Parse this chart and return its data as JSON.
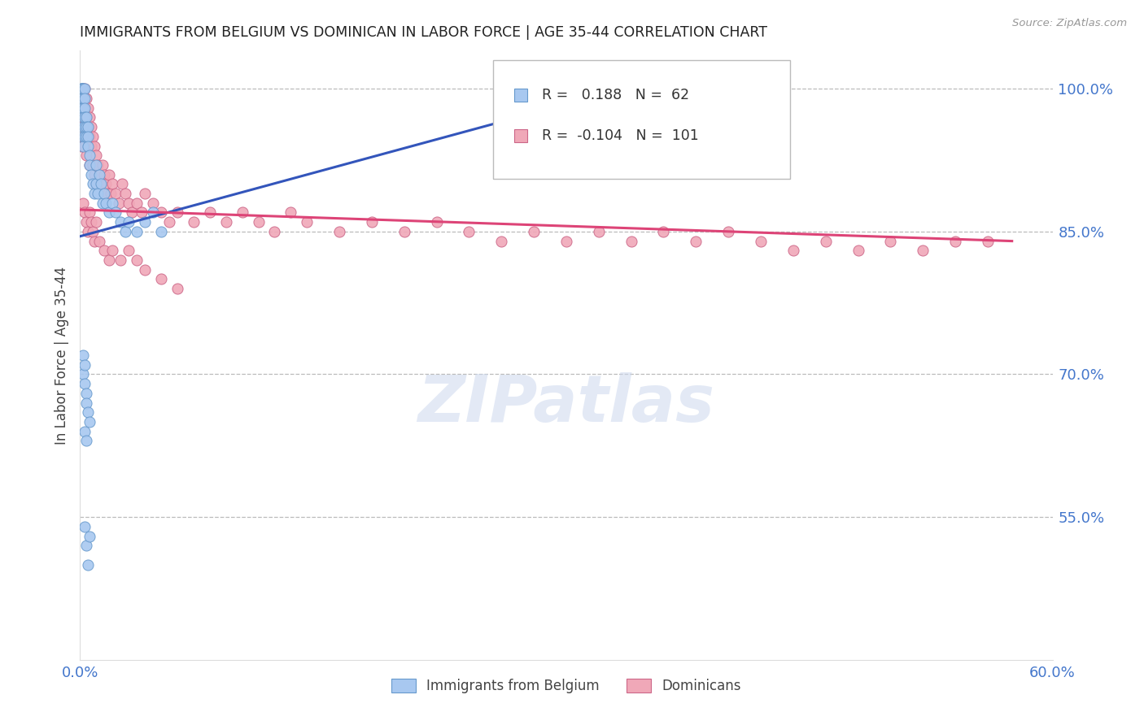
{
  "title": "IMMIGRANTS FROM BELGIUM VS DOMINICAN IN LABOR FORCE | AGE 35-44 CORRELATION CHART",
  "source": "Source: ZipAtlas.com",
  "ylabel": "In Labor Force | Age 35-44",
  "x_min": 0.0,
  "x_max": 0.6,
  "y_min": 0.4,
  "y_max": 1.04,
  "y_ticks": [
    0.55,
    0.7,
    0.85,
    1.0
  ],
  "y_tick_labels": [
    "55.0%",
    "70.0%",
    "85.0%",
    "100.0%"
  ],
  "belgium_color": "#a8c8f0",
  "dominican_color": "#f0a8b8",
  "belgium_edge_color": "#6699cc",
  "dominican_edge_color": "#cc6688",
  "trendline_belgium_color": "#3355bb",
  "trendline_dominican_color": "#dd4477",
  "legend_R_belgium": " 0.188",
  "legend_N_belgium": "62",
  "legend_R_dominican": "-0.104",
  "legend_N_dominican": "101",
  "legend_label_belgium": "Immigrants from Belgium",
  "legend_label_dominican": "Dominicans",
  "watermark": "ZIPatlas",
  "background_color": "#ffffff",
  "grid_color": "#bbbbbb",
  "axis_color": "#4477cc",
  "title_color": "#222222",
  "marker_size": 9,
  "bel_trendline_x": [
    0.0,
    0.27
  ],
  "bel_trendline_y": [
    0.845,
    0.97
  ],
  "dom_trendline_x": [
    0.0,
    0.575
  ],
  "dom_trendline_y": [
    0.873,
    0.84
  ],
  "belgium_x": [
    0.001,
    0.001,
    0.001,
    0.001,
    0.001,
    0.002,
    0.002,
    0.002,
    0.002,
    0.002,
    0.002,
    0.002,
    0.002,
    0.003,
    0.003,
    0.003,
    0.003,
    0.003,
    0.003,
    0.004,
    0.004,
    0.004,
    0.005,
    0.005,
    0.005,
    0.006,
    0.006,
    0.007,
    0.008,
    0.009,
    0.01,
    0.01,
    0.011,
    0.012,
    0.013,
    0.014,
    0.015,
    0.016,
    0.018,
    0.02,
    0.022,
    0.025,
    0.028,
    0.03,
    0.035,
    0.04,
    0.045,
    0.05,
    0.002,
    0.002,
    0.003,
    0.003,
    0.004,
    0.004,
    0.005,
    0.006,
    0.003,
    0.004,
    0.005,
    0.006,
    0.003,
    0.004
  ],
  "belgium_y": [
    1.0,
    1.0,
    0.99,
    0.98,
    1.0,
    1.0,
    1.0,
    0.99,
    0.98,
    0.97,
    0.96,
    0.95,
    0.94,
    1.0,
    0.99,
    0.98,
    0.97,
    0.96,
    0.95,
    0.97,
    0.96,
    0.95,
    0.96,
    0.95,
    0.94,
    0.93,
    0.92,
    0.91,
    0.9,
    0.89,
    0.92,
    0.9,
    0.89,
    0.91,
    0.9,
    0.88,
    0.89,
    0.88,
    0.87,
    0.88,
    0.87,
    0.86,
    0.85,
    0.86,
    0.85,
    0.86,
    0.87,
    0.85,
    0.72,
    0.7,
    0.71,
    0.69,
    0.68,
    0.67,
    0.66,
    0.65,
    0.54,
    0.52,
    0.5,
    0.53,
    0.64,
    0.63
  ],
  "dominican_x": [
    0.001,
    0.001,
    0.001,
    0.002,
    0.002,
    0.002,
    0.002,
    0.003,
    0.003,
    0.003,
    0.003,
    0.003,
    0.004,
    0.004,
    0.004,
    0.004,
    0.005,
    0.005,
    0.005,
    0.006,
    0.006,
    0.006,
    0.007,
    0.007,
    0.008,
    0.008,
    0.009,
    0.009,
    0.01,
    0.01,
    0.011,
    0.012,
    0.013,
    0.014,
    0.015,
    0.016,
    0.017,
    0.018,
    0.019,
    0.02,
    0.022,
    0.024,
    0.026,
    0.028,
    0.03,
    0.032,
    0.035,
    0.038,
    0.04,
    0.045,
    0.05,
    0.055,
    0.06,
    0.07,
    0.08,
    0.09,
    0.1,
    0.11,
    0.12,
    0.13,
    0.14,
    0.16,
    0.18,
    0.2,
    0.22,
    0.24,
    0.26,
    0.28,
    0.3,
    0.32,
    0.34,
    0.36,
    0.38,
    0.4,
    0.42,
    0.44,
    0.46,
    0.48,
    0.5,
    0.52,
    0.54,
    0.56,
    0.002,
    0.003,
    0.004,
    0.005,
    0.006,
    0.007,
    0.008,
    0.009,
    0.01,
    0.012,
    0.015,
    0.018,
    0.02,
    0.025,
    0.03,
    0.035,
    0.04,
    0.05,
    0.06
  ],
  "dominican_y": [
    0.99,
    0.97,
    0.94,
    1.0,
    0.99,
    0.97,
    0.95,
    1.0,
    0.99,
    0.98,
    0.96,
    0.94,
    0.99,
    0.97,
    0.95,
    0.93,
    0.98,
    0.96,
    0.94,
    0.97,
    0.95,
    0.92,
    0.96,
    0.94,
    0.95,
    0.92,
    0.94,
    0.91,
    0.93,
    0.9,
    0.92,
    0.91,
    0.9,
    0.92,
    0.91,
    0.9,
    0.89,
    0.91,
    0.89,
    0.9,
    0.89,
    0.88,
    0.9,
    0.89,
    0.88,
    0.87,
    0.88,
    0.87,
    0.89,
    0.88,
    0.87,
    0.86,
    0.87,
    0.86,
    0.87,
    0.86,
    0.87,
    0.86,
    0.85,
    0.87,
    0.86,
    0.85,
    0.86,
    0.85,
    0.86,
    0.85,
    0.84,
    0.85,
    0.84,
    0.85,
    0.84,
    0.85,
    0.84,
    0.85,
    0.84,
    0.83,
    0.84,
    0.83,
    0.84,
    0.83,
    0.84,
    0.84,
    0.88,
    0.87,
    0.86,
    0.85,
    0.87,
    0.86,
    0.85,
    0.84,
    0.86,
    0.84,
    0.83,
    0.82,
    0.83,
    0.82,
    0.83,
    0.82,
    0.81,
    0.8,
    0.79
  ]
}
